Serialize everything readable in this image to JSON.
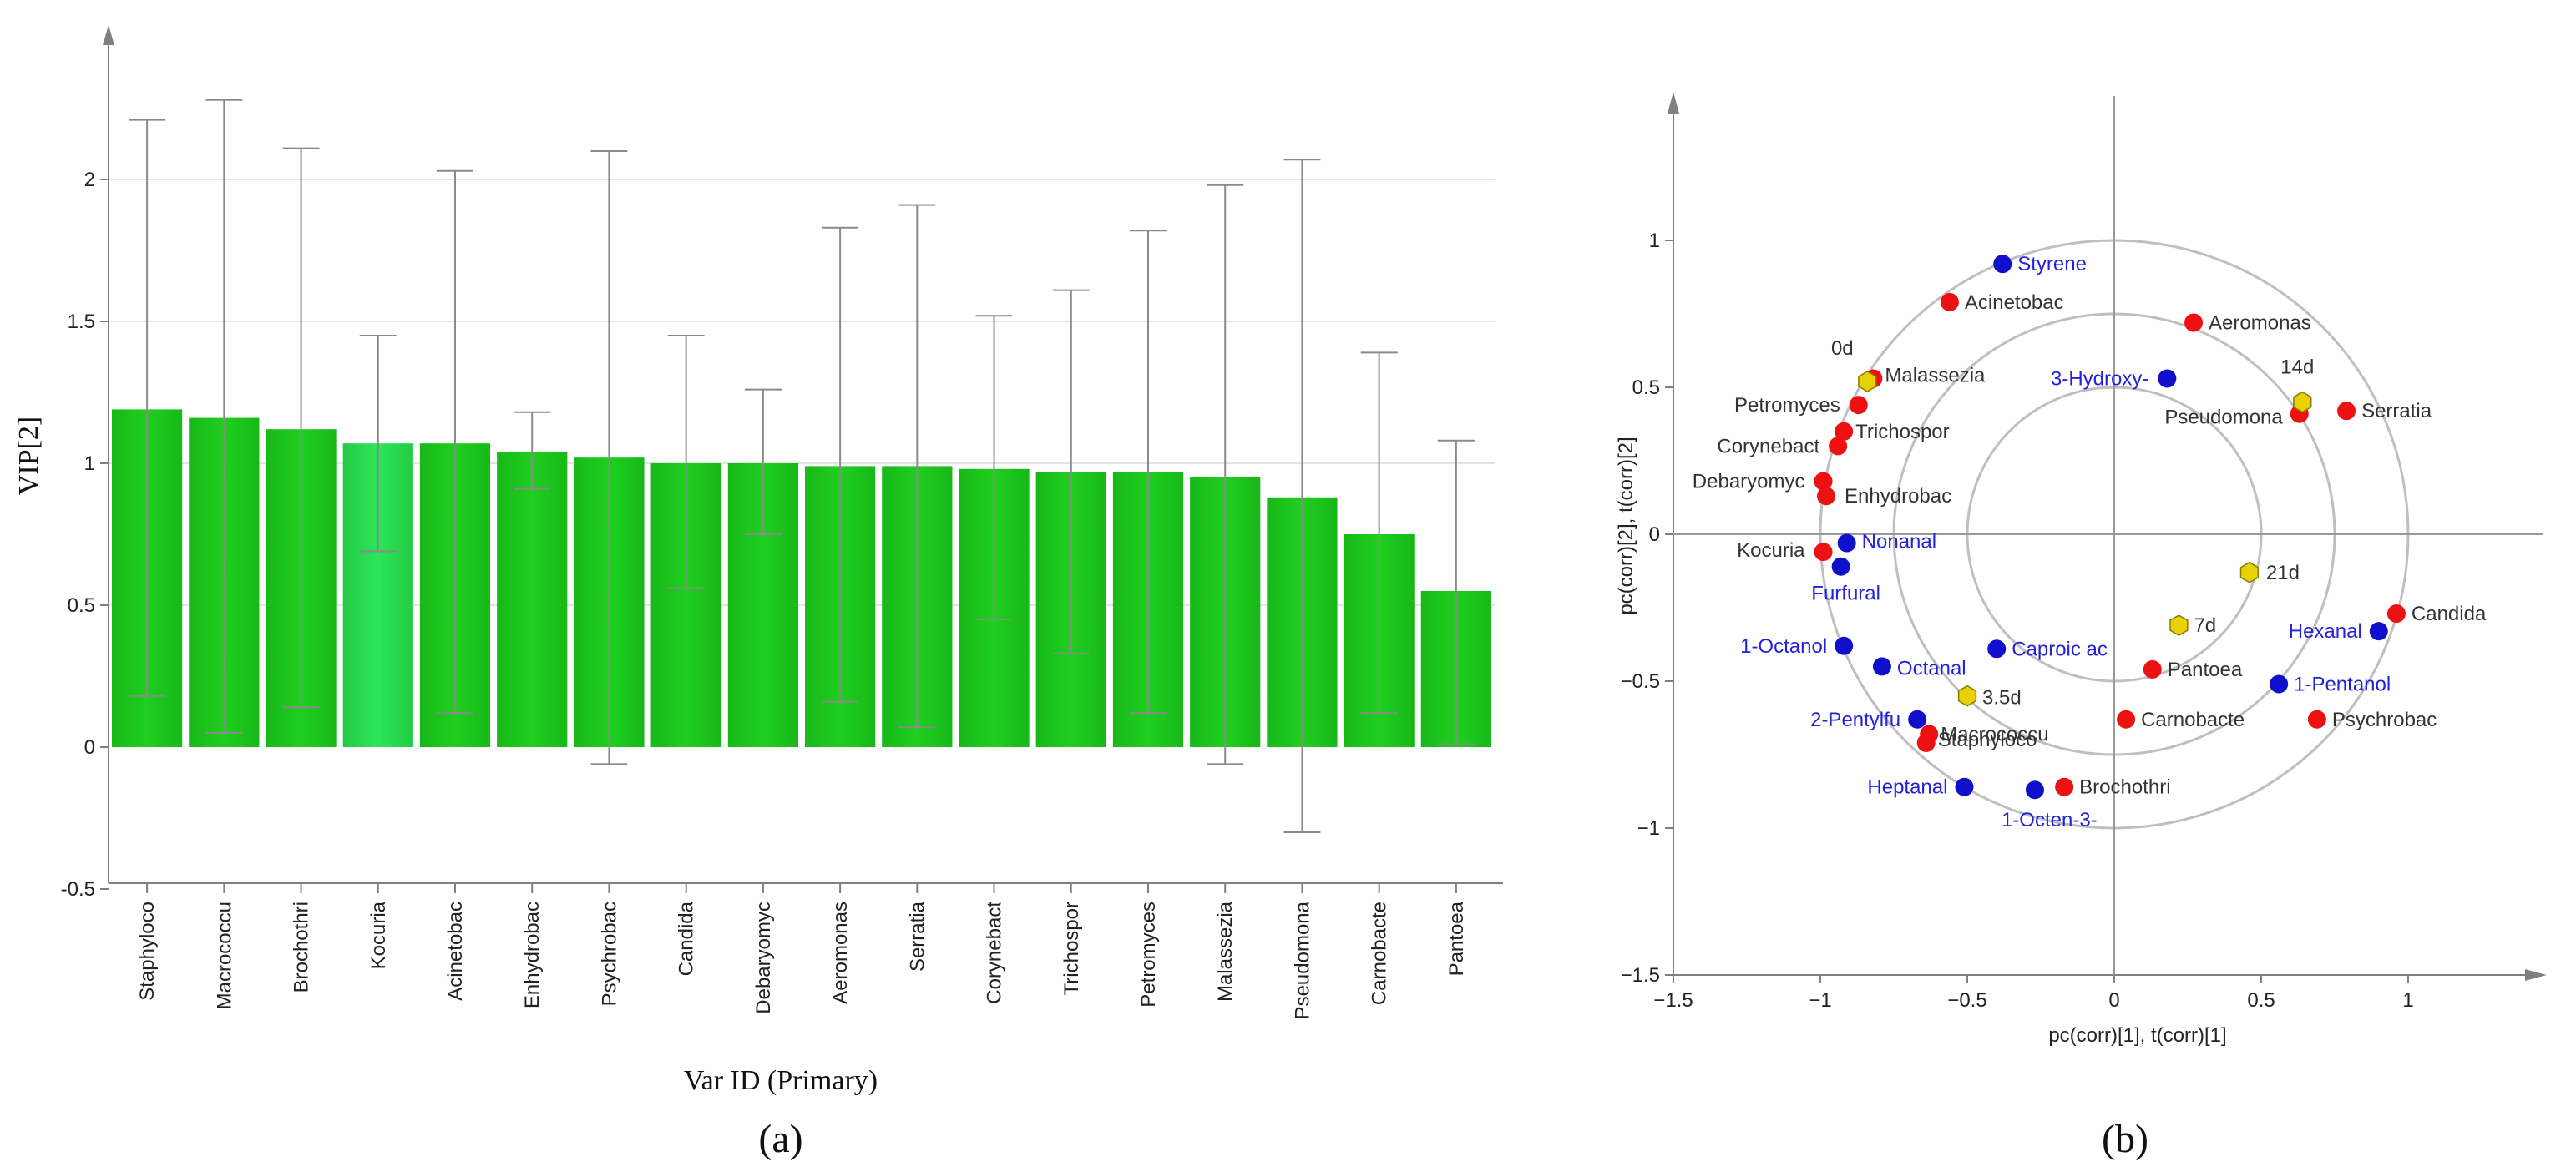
{
  "captions": {
    "a": "(a)",
    "b": "(b)"
  },
  "colors": {
    "bar": "#1fcf1f",
    "bar_highlight": "#2ee55a",
    "blue_point": "#1010cc",
    "blue_label": "#2222dd",
    "red_point": "#ee1111",
    "yellow_point": "#e6d200",
    "dark_label": "#333333",
    "circle": "#bfbfbf",
    "axis": "#808080"
  },
  "chart_data": [
    {
      "type": "bar",
      "title": "",
      "xlabel": "Var ID (Primary)",
      "ylabel": "VIP[2]",
      "ylim": [
        -0.5,
        2.4
      ],
      "yticks": [
        -0.5,
        0,
        0.5,
        1,
        1.5,
        2
      ],
      "ytick_labels": [
        "-0.5",
        "0",
        "0.5",
        "1",
        "1.5",
        "2"
      ],
      "grid": true,
      "categories": [
        "Staphyloco",
        "Macrococcu",
        "Brochothri",
        "Kocuria",
        "Acinetobac",
        "Enhydrobac",
        "Psychrobac",
        "Candida",
        "Debaryomyc",
        "Aeromonas",
        "Serratia",
        "Corynebact",
        "Trichospor",
        "Petromyces",
        "Malassezia",
        "Pseudomona",
        "Carnobacte",
        "Pantoea"
      ],
      "values": [
        1.19,
        1.16,
        1.12,
        1.07,
        1.07,
        1.04,
        1.02,
        1.0,
        1.0,
        0.99,
        0.99,
        0.98,
        0.97,
        0.97,
        0.95,
        0.88,
        0.75,
        0.55
      ],
      "error_low": [
        0.18,
        0.05,
        0.14,
        0.69,
        0.12,
        0.91,
        -0.06,
        0.56,
        0.75,
        0.16,
        0.07,
        0.45,
        0.33,
        0.12,
        -0.06,
        -0.3,
        0.12,
        0.01
      ],
      "error_high": [
        2.21,
        2.28,
        2.11,
        1.45,
        2.03,
        1.18,
        2.1,
        1.45,
        1.26,
        1.83,
        1.91,
        1.52,
        1.61,
        1.82,
        1.98,
        2.07,
        1.39,
        1.08
      ],
      "highlighted_category": "Kocuria"
    },
    {
      "type": "scatter",
      "title": "",
      "xlabel": "pc(corr)[1], t(corr)[1]",
      "ylabel": "pc(corr)[2], t(corr)[2]",
      "xlim": [
        -1.5,
        1.5
      ],
      "ylim": [
        -1.5,
        1.5
      ],
      "xticks": [
        -1.5,
        -1,
        -0.5,
        0,
        0.5,
        1
      ],
      "xtick_labels": [
        "−1.5",
        "−1",
        "−0.5",
        "0",
        "0.5",
        "1"
      ],
      "yticks": [
        -1.5,
        -1,
        -0.5,
        0,
        0.5,
        1
      ],
      "ytick_labels": [
        "−1.5",
        "−1",
        "−0.5",
        "0",
        "0.5",
        "1"
      ],
      "circles_radius": [
        0.5,
        0.75,
        1.0
      ],
      "series": [
        {
          "kind": "volatiles",
          "marker": "circle",
          "color": "blue",
          "points": [
            {
              "label": "Styrene",
              "x": -0.38,
              "y": 0.92
            },
            {
              "label": "3-Hydroxy-",
              "x": 0.18,
              "y": 0.53
            },
            {
              "label": "Nonanal",
              "x": -0.91,
              "y": -0.03
            },
            {
              "label": "Furfural",
              "x": -0.93,
              "y": -0.11
            },
            {
              "label": "1-Octanol",
              "x": -0.92,
              "y": -0.38
            },
            {
              "label": "Octanal",
              "x": -0.79,
              "y": -0.45
            },
            {
              "label": "Caproic ac",
              "x": -0.4,
              "y": -0.39
            },
            {
              "label": "2-Pentylfu",
              "x": -0.67,
              "y": -0.63
            },
            {
              "label": "Heptanal",
              "x": -0.51,
              "y": -0.86
            },
            {
              "label": "1-Octen-3-",
              "x": -0.27,
              "y": -0.87
            },
            {
              "label": "Hexanal",
              "x": 0.9,
              "y": -0.33
            },
            {
              "label": "1-Pentanol",
              "x": 0.56,
              "y": -0.51
            }
          ]
        },
        {
          "kind": "microbes",
          "marker": "circle",
          "color": "red",
          "points": [
            {
              "label": "Acinetobac",
              "x": -0.56,
              "y": 0.79
            },
            {
              "label": "Aeromonas",
              "x": 0.27,
              "y": 0.72
            },
            {
              "label": "Malassezia",
              "x": -0.82,
              "y": 0.53
            },
            {
              "label": "Petromyces",
              "x": -0.87,
              "y": 0.44
            },
            {
              "label": "Trichospor",
              "x": -0.92,
              "y": 0.35
            },
            {
              "label": "Corynebact",
              "x": -0.94,
              "y": 0.3
            },
            {
              "label": "Debaryomyc",
              "x": -0.99,
              "y": 0.18
            },
            {
              "label": "Enhydrobac",
              "x": -0.98,
              "y": 0.13
            },
            {
              "label": "Kocuria",
              "x": -0.99,
              "y": -0.06
            },
            {
              "label": "Serratia",
              "x": 0.79,
              "y": 0.42
            },
            {
              "label": "Pseudomona",
              "x": 0.63,
              "y": 0.41
            },
            {
              "label": "Candida",
              "x": 0.96,
              "y": -0.27
            },
            {
              "label": "Pantoea",
              "x": 0.13,
              "y": -0.46
            },
            {
              "label": "Carnobacte",
              "x": 0.04,
              "y": -0.63
            },
            {
              "label": "Psychrobac",
              "x": 0.69,
              "y": -0.63
            },
            {
              "label": "Macrococcu",
              "x": -0.63,
              "y": -0.68
            },
            {
              "label": "Staphyloco",
              "x": -0.64,
              "y": -0.71
            },
            {
              "label": "Brochothri",
              "x": -0.17,
              "y": -0.86
            }
          ]
        },
        {
          "kind": "storage_days",
          "marker": "hexagon",
          "color": "yellow",
          "points": [
            {
              "label": "0d",
              "x": -0.84,
              "y": 0.52
            },
            {
              "label": "14d",
              "x": 0.64,
              "y": 0.45
            },
            {
              "label": "21d",
              "x": 0.46,
              "y": -0.13
            },
            {
              "label": "7d",
              "x": 0.22,
              "y": -0.31
            },
            {
              "label": "3.5d",
              "x": -0.5,
              "y": -0.55
            }
          ]
        }
      ]
    }
  ]
}
